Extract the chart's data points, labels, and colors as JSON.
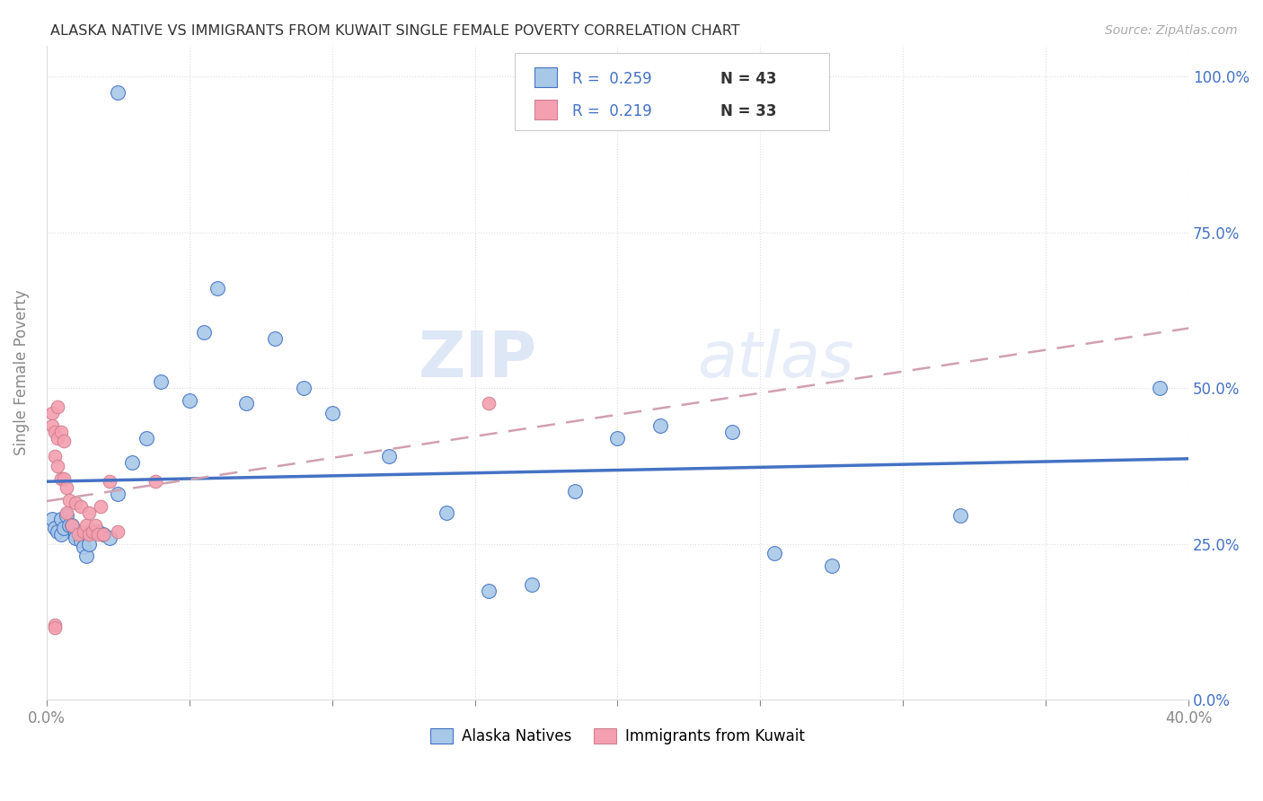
{
  "title": "ALASKA NATIVE VS IMMIGRANTS FROM KUWAIT SINGLE FEMALE POVERTY CORRELATION CHART",
  "source": "Source: ZipAtlas.com",
  "ylabel": "Single Female Poverty",
  "xlim": [
    0.0,
    0.4
  ],
  "ylim": [
    0.0,
    1.05
  ],
  "xticks": [
    0.0,
    0.05,
    0.1,
    0.15,
    0.2,
    0.25,
    0.3,
    0.35,
    0.4
  ],
  "xtick_labels": [
    "0.0%",
    "",
    "",
    "",
    "",
    "",
    "",
    "",
    "40.0%"
  ],
  "ytick_labels": [
    "0.0%",
    "25.0%",
    "50.0%",
    "75.0%",
    "100.0%"
  ],
  "legend_label1": "Alaska Natives",
  "legend_label2": "Immigrants from Kuwait",
  "r1": "0.259",
  "n1": "43",
  "r2": "0.219",
  "n2": "33",
  "color_blue": "#a8c8e8",
  "color_pink": "#f4a0b0",
  "color_line_blue": "#4472c4",
  "color_line_pink": "#e8a0b0",
  "watermark_zip": "ZIP",
  "watermark_atlas": "atlas",
  "blue_x": [
    0.025,
    0.002,
    0.003,
    0.004,
    0.005,
    0.005,
    0.006,
    0.007,
    0.008,
    0.009,
    0.01,
    0.01,
    0.012,
    0.013,
    0.014,
    0.015,
    0.016,
    0.018,
    0.02,
    0.022,
    0.025,
    0.03,
    0.035,
    0.04,
    0.05,
    0.055,
    0.06,
    0.07,
    0.08,
    0.09,
    0.1,
    0.12,
    0.14,
    0.155,
    0.17,
    0.185,
    0.2,
    0.215,
    0.24,
    0.255,
    0.275,
    0.32,
    0.39
  ],
  "blue_y": [
    0.975,
    0.29,
    0.275,
    0.27,
    0.265,
    0.29,
    0.275,
    0.295,
    0.28,
    0.28,
    0.265,
    0.26,
    0.255,
    0.245,
    0.23,
    0.25,
    0.27,
    0.27,
    0.265,
    0.26,
    0.33,
    0.38,
    0.42,
    0.51,
    0.48,
    0.59,
    0.66,
    0.475,
    0.58,
    0.5,
    0.46,
    0.39,
    0.3,
    0.175,
    0.185,
    0.335,
    0.42,
    0.44,
    0.43,
    0.235,
    0.215,
    0.295,
    0.5
  ],
  "pink_x": [
    0.002,
    0.002,
    0.003,
    0.003,
    0.004,
    0.004,
    0.005,
    0.005,
    0.006,
    0.006,
    0.007,
    0.007,
    0.008,
    0.009,
    0.01,
    0.011,
    0.012,
    0.013,
    0.014,
    0.015,
    0.015,
    0.016,
    0.017,
    0.018,
    0.019,
    0.02,
    0.022,
    0.025,
    0.003,
    0.003,
    0.004,
    0.038,
    0.155
  ],
  "pink_y": [
    0.46,
    0.44,
    0.43,
    0.39,
    0.42,
    0.375,
    0.43,
    0.355,
    0.415,
    0.355,
    0.34,
    0.3,
    0.32,
    0.28,
    0.315,
    0.265,
    0.31,
    0.27,
    0.28,
    0.265,
    0.3,
    0.27,
    0.28,
    0.265,
    0.31,
    0.265,
    0.35,
    0.27,
    0.12,
    0.115,
    0.47,
    0.35,
    0.475
  ]
}
